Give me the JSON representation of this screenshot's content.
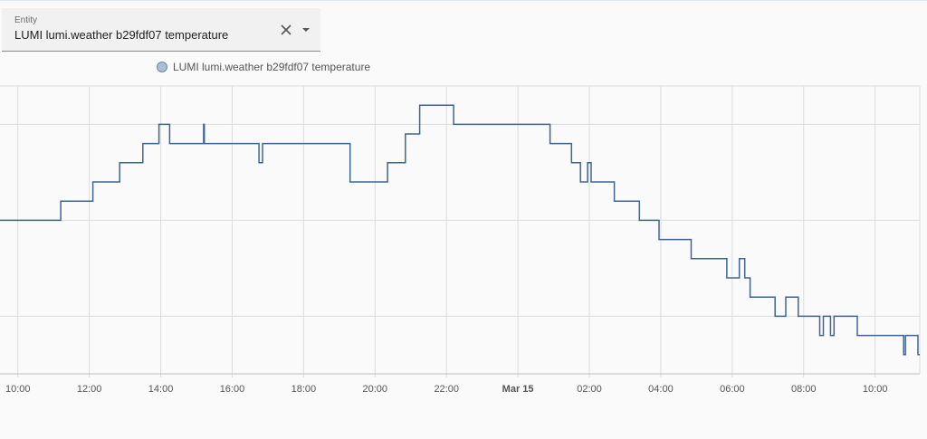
{
  "entity_picker": {
    "label": "Entity",
    "value": "LUMI lumi.weather b29fdf07 temperature",
    "clear_icon": "close-icon",
    "dropdown_icon": "caret-down-icon"
  },
  "chart_data": {
    "type": "line",
    "step": true,
    "grid": true,
    "legend_position": "top",
    "series": [
      {
        "name": "LUMI lumi.weather b29fdf07 temperature",
        "color": "#3f6493",
        "points": [
          [
            9.5,
            20.0
          ],
          [
            11.2,
            20.2
          ],
          [
            12.1,
            20.4
          ],
          [
            12.85,
            20.6
          ],
          [
            13.5,
            20.8
          ],
          [
            13.95,
            21.0
          ],
          [
            14.25,
            20.8
          ],
          [
            15.2,
            21.0
          ],
          [
            15.22,
            20.8
          ],
          [
            16.75,
            20.6
          ],
          [
            16.85,
            20.8
          ],
          [
            19.3,
            20.4
          ],
          [
            20.35,
            20.6
          ],
          [
            20.85,
            20.9
          ],
          [
            21.25,
            21.2
          ],
          [
            22.2,
            21.0
          ],
          [
            24.9,
            20.8
          ],
          [
            25.5,
            20.6
          ],
          [
            25.75,
            20.4
          ],
          [
            25.95,
            20.6
          ],
          [
            26.05,
            20.4
          ],
          [
            26.7,
            20.2
          ],
          [
            27.4,
            20.0
          ],
          [
            27.95,
            19.8
          ],
          [
            28.85,
            19.6
          ],
          [
            29.85,
            19.4
          ],
          [
            30.2,
            19.6
          ],
          [
            30.35,
            19.4
          ],
          [
            30.5,
            19.2
          ],
          [
            31.2,
            19.0
          ],
          [
            31.5,
            19.2
          ],
          [
            31.85,
            19.0
          ],
          [
            32.45,
            18.8
          ],
          [
            32.55,
            19.0
          ],
          [
            32.75,
            18.8
          ],
          [
            32.85,
            19.0
          ],
          [
            33.5,
            18.8
          ],
          [
            34.8,
            18.6
          ],
          [
            34.85,
            18.8
          ],
          [
            35.2,
            18.6
          ]
        ]
      }
    ],
    "x_range": [
      "2022-03-14T09:30",
      "2022-03-15T11:15"
    ],
    "x_ticks": [
      {
        "t": 10,
        "label": "10:00",
        "bold": false
      },
      {
        "t": 12,
        "label": "12:00",
        "bold": false
      },
      {
        "t": 14,
        "label": "14:00",
        "bold": false
      },
      {
        "t": 16,
        "label": "16:00",
        "bold": false
      },
      {
        "t": 18,
        "label": "18:00",
        "bold": false
      },
      {
        "t": 20,
        "label": "20:00",
        "bold": false
      },
      {
        "t": 22,
        "label": "22:00",
        "bold": false
      },
      {
        "t": 24,
        "label": "Mar 15",
        "bold": true
      },
      {
        "t": 26,
        "label": "02:00",
        "bold": false
      },
      {
        "t": 28,
        "label": "04:00",
        "bold": false
      },
      {
        "t": 30,
        "label": "06:00",
        "bold": false
      },
      {
        "t": 32,
        "label": "08:00",
        "bold": false
      },
      {
        "t": 34,
        "label": "10:00",
        "bold": false
      }
    ],
    "y_range": [
      18.4,
      21.4
    ],
    "y_gridlines": [
      18.4,
      19.0,
      20.0,
      21.0
    ],
    "y_tick_labels_visible": false
  }
}
